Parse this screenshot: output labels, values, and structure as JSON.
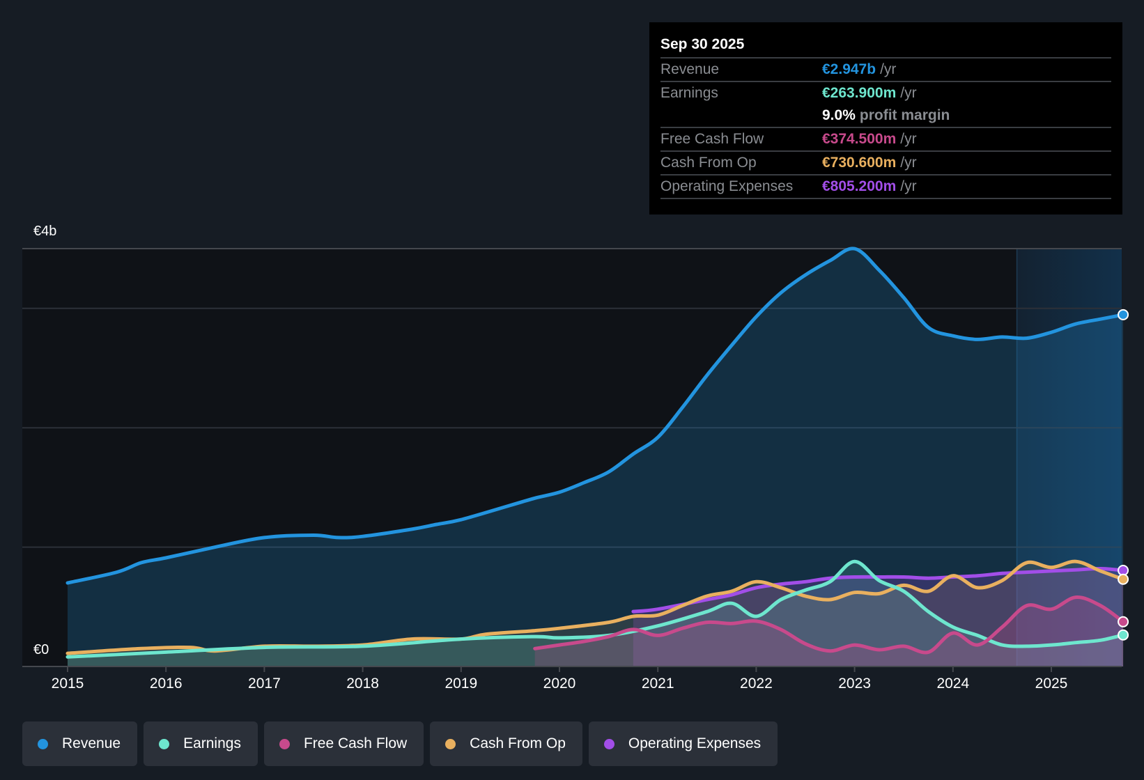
{
  "tooltip": {
    "date": "Sep 30 2025",
    "rows": [
      {
        "label": "Revenue",
        "value": "€2.947b",
        "unit": "/yr",
        "color": "#2394df"
      },
      {
        "label": "Earnings",
        "value": "€263.900m",
        "unit": "/yr",
        "color": "#6ee6ce"
      },
      {
        "label": "",
        "margin_pct": "9.0%",
        "margin_text": "profit margin"
      },
      {
        "label": "Free Cash Flow",
        "value": "€374.500m",
        "unit": "/yr",
        "color": "#c84a8c"
      },
      {
        "label": "Cash From Op",
        "value": "€730.600m",
        "unit": "/yr",
        "color": "#e9b05f"
      },
      {
        "label": "Operating Expenses",
        "value": "€805.200m",
        "unit": "/yr",
        "color": "#a24ee8"
      }
    ]
  },
  "legend": [
    {
      "label": "Revenue",
      "color": "#2394df"
    },
    {
      "label": "Earnings",
      "color": "#6ee6ce"
    },
    {
      "label": "Free Cash Flow",
      "color": "#c84a8c"
    },
    {
      "label": "Cash From Op",
      "color": "#e9b05f"
    },
    {
      "label": "Operating Expenses",
      "color": "#a24ee8"
    }
  ],
  "chart_data": {
    "type": "area",
    "title": "",
    "xlabel": "",
    "ylabel": "",
    "y_unit": "EUR billions",
    "y_tick_labels": [
      "€0",
      "€4b"
    ],
    "gridlines_at": [
      1,
      2,
      3
    ],
    "ylim": [
      0,
      3.5
    ],
    "xlim": [
      2014.55,
      2025.75
    ],
    "x_tick_labels": [
      "2015",
      "2016",
      "2017",
      "2018",
      "2019",
      "2020",
      "2021",
      "2022",
      "2023",
      "2024",
      "2025"
    ],
    "x_ticks": [
      2015,
      2016,
      2017,
      2018,
      2019,
      2020,
      2021,
      2022,
      2023,
      2024,
      2025
    ],
    "highlight_start": 2024.65,
    "legend_position": "bottom-left",
    "series": [
      {
        "name": "Revenue",
        "color": "#2394df",
        "x": [
          2015,
          2015.5,
          2015.75,
          2016,
          2016.5,
          2017,
          2017.5,
          2017.75,
          2018,
          2018.5,
          2018.75,
          2019,
          2019.5,
          2019.75,
          2020,
          2020.25,
          2020.5,
          2020.75,
          2021,
          2021.25,
          2021.5,
          2021.75,
          2022,
          2022.25,
          2022.5,
          2022.75,
          2023,
          2023.25,
          2023.5,
          2023.75,
          2024,
          2024.25,
          2024.5,
          2024.75,
          2025,
          2025.25,
          2025.5,
          2025.73
        ],
        "values": [
          0.7,
          0.79,
          0.87,
          0.91,
          1.0,
          1.08,
          1.1,
          1.08,
          1.09,
          1.15,
          1.19,
          1.23,
          1.35,
          1.41,
          1.46,
          1.54,
          1.63,
          1.78,
          1.92,
          2.17,
          2.44,
          2.69,
          2.93,
          3.13,
          3.28,
          3.4,
          3.5,
          3.32,
          3.09,
          2.84,
          2.77,
          2.74,
          2.76,
          2.75,
          2.8,
          2.87,
          2.91,
          2.947
        ]
      },
      {
        "name": "Earnings",
        "color": "#6ee6ce",
        "x": [
          2015,
          2016,
          2017,
          2018,
          2019,
          2019.75,
          2020,
          2020.5,
          2021,
          2021.5,
          2021.75,
          2022,
          2022.25,
          2022.5,
          2022.75,
          2023,
          2023.25,
          2023.5,
          2023.75,
          2024,
          2024.25,
          2024.5,
          2024.75,
          2025,
          2025.25,
          2025.5,
          2025.73
        ],
        "values": [
          0.08,
          0.12,
          0.16,
          0.17,
          0.23,
          0.25,
          0.24,
          0.26,
          0.34,
          0.46,
          0.53,
          0.42,
          0.56,
          0.64,
          0.71,
          0.88,
          0.72,
          0.63,
          0.46,
          0.33,
          0.26,
          0.18,
          0.17,
          0.18,
          0.2,
          0.22,
          0.264
        ]
      },
      {
        "name": "Free Cash Flow",
        "color": "#c84a8c",
        "x": [
          2019.75,
          2020,
          2020.25,
          2020.5,
          2020.75,
          2021,
          2021.25,
          2021.5,
          2021.75,
          2022,
          2022.25,
          2022.5,
          2022.75,
          2023,
          2023.25,
          2023.5,
          2023.75,
          2024,
          2024.25,
          2024.5,
          2024.75,
          2025,
          2025.25,
          2025.5,
          2025.73
        ],
        "values": [
          0.15,
          0.18,
          0.21,
          0.25,
          0.31,
          0.26,
          0.32,
          0.37,
          0.36,
          0.38,
          0.31,
          0.19,
          0.13,
          0.18,
          0.14,
          0.17,
          0.12,
          0.28,
          0.18,
          0.33,
          0.51,
          0.48,
          0.58,
          0.51,
          0.3745
        ]
      },
      {
        "name": "Cash From Op",
        "color": "#e9b05f",
        "x": [
          2015,
          2015.75,
          2016.25,
          2016.5,
          2017,
          2017.5,
          2018,
          2018.5,
          2019,
          2019.25,
          2019.75,
          2020,
          2020.5,
          2020.75,
          2021,
          2021.25,
          2021.5,
          2021.75,
          2022,
          2022.25,
          2022.5,
          2022.75,
          2023,
          2023.25,
          2023.5,
          2023.75,
          2024,
          2024.25,
          2024.5,
          2024.75,
          2025,
          2025.25,
          2025.5,
          2025.73
        ],
        "values": [
          0.11,
          0.15,
          0.16,
          0.13,
          0.17,
          0.17,
          0.18,
          0.23,
          0.23,
          0.27,
          0.3,
          0.32,
          0.37,
          0.42,
          0.43,
          0.51,
          0.59,
          0.63,
          0.71,
          0.66,
          0.59,
          0.56,
          0.62,
          0.61,
          0.68,
          0.63,
          0.76,
          0.66,
          0.72,
          0.87,
          0.83,
          0.88,
          0.8,
          0.7306
        ]
      },
      {
        "name": "Operating Expenses",
        "color": "#a24ee8",
        "x": [
          2020.75,
          2021,
          2021.5,
          2021.75,
          2022,
          2022.25,
          2022.5,
          2022.75,
          2023,
          2023.25,
          2023.5,
          2023.75,
          2024,
          2024.25,
          2024.5,
          2024.75,
          2025,
          2025.25,
          2025.5,
          2025.73
        ],
        "values": [
          0.46,
          0.48,
          0.56,
          0.6,
          0.66,
          0.69,
          0.71,
          0.74,
          0.75,
          0.75,
          0.75,
          0.74,
          0.75,
          0.76,
          0.78,
          0.79,
          0.8,
          0.81,
          0.82,
          0.8052
        ]
      }
    ]
  }
}
